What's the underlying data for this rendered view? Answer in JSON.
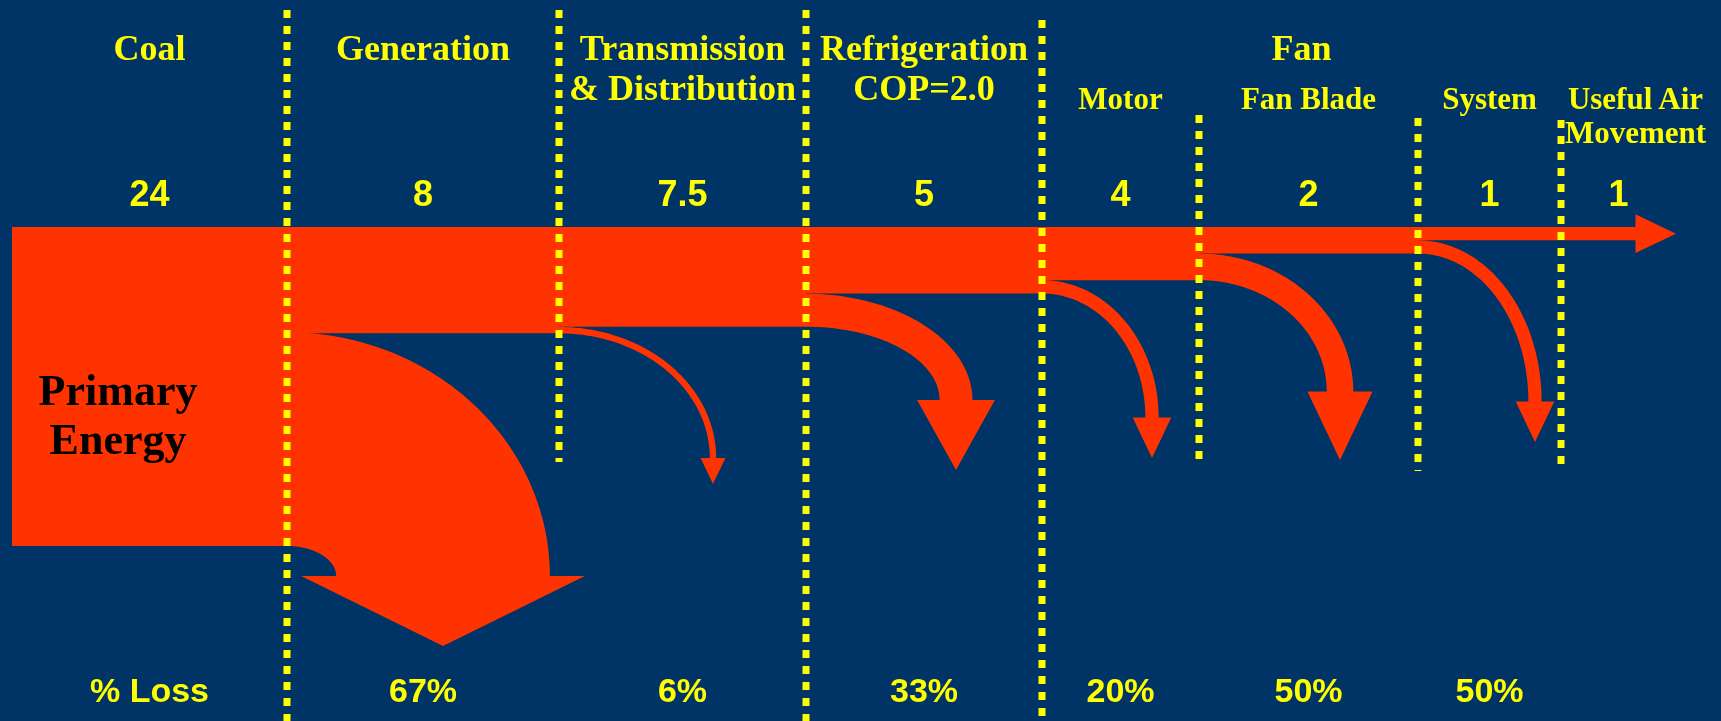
{
  "chart_data": {
    "type": "other",
    "categories": [
      "Coal",
      "Generation",
      "Transmission & Distribution",
      "Refrigeration COP=2.0",
      "Motor",
      "Fan Blade",
      "System",
      "Useful Air Movement"
    ],
    "series": [
      {
        "color": "#ff3300",
        "values": [
          24,
          8,
          7.5,
          5,
          4,
          2,
          1,
          1
        ]
      },
      {
        "name": "% Loss",
        "values": [
          null,
          67,
          6,
          33,
          20,
          50,
          50,
          null
        ],
        "value_labels": [
          null,
          "67%",
          "6%",
          "33%",
          "20%",
          "50%",
          "50%",
          null
        ]
      }
    ],
    "data_labels": true,
    "annotations": [
      "Fan",
      "Primary Energy"
    ]
  }
}
